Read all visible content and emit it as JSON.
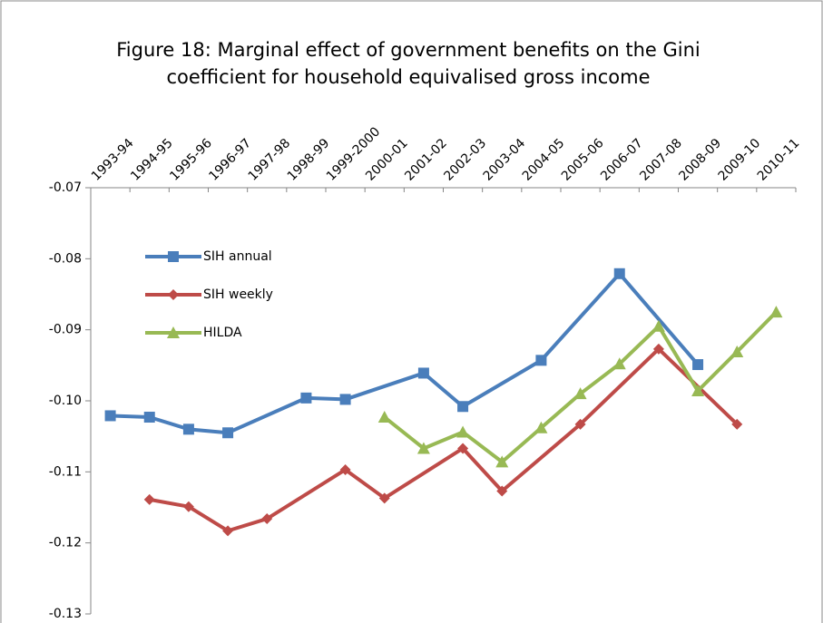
{
  "chart_data": {
    "type": "line",
    "title": "Figure 18: Marginal effect of government benefits on the Gini coefficient for household equivalised gross income",
    "categories": [
      "1993-94",
      "1994-95",
      "1995-96",
      "1996-97",
      "1997-98",
      "1998-99",
      "1999-2000",
      "2000-01",
      "2001-02",
      "2002-03",
      "2003-04",
      "2004-05",
      "2005-06",
      "2006-07",
      "2007-08",
      "2008-09",
      "2009-10",
      "2010-11"
    ],
    "series": [
      {
        "name": "SIH annual",
        "color": "#4a7ebb",
        "marker": "square",
        "values": [
          -0.1021,
          -0.1023,
          -0.104,
          -0.1045,
          null,
          -0.0996,
          -0.0998,
          null,
          -0.0961,
          -0.1008,
          null,
          -0.0943,
          null,
          -0.0821,
          null,
          -0.0949,
          null,
          null
        ]
      },
      {
        "name": "SIH weekly",
        "color": "#be4b48",
        "marker": "diamond",
        "values": [
          null,
          -0.1139,
          -0.1149,
          -0.1183,
          -0.1166,
          null,
          -0.1097,
          -0.1137,
          null,
          -0.1067,
          -0.1127,
          null,
          -0.1033,
          null,
          -0.0927,
          null,
          -0.1033,
          null
        ]
      },
      {
        "name": "HILDA",
        "color": "#98b954",
        "marker": "triangle",
        "values": [
          null,
          null,
          null,
          null,
          null,
          null,
          null,
          -0.1023,
          -0.1067,
          -0.1044,
          -0.1086,
          -0.1038,
          -0.099,
          -0.0948,
          -0.0895,
          -0.0986,
          -0.0931,
          -0.0875
        ]
      }
    ],
    "ylim": [
      -0.13,
      -0.07
    ],
    "yticks": [
      -0.13,
      -0.12,
      -0.11,
      {
        "value": -0.1,
        "label": "-0.10"
      },
      -0.09,
      -0.08,
      -0.07
    ],
    "span_gaps": true
  }
}
